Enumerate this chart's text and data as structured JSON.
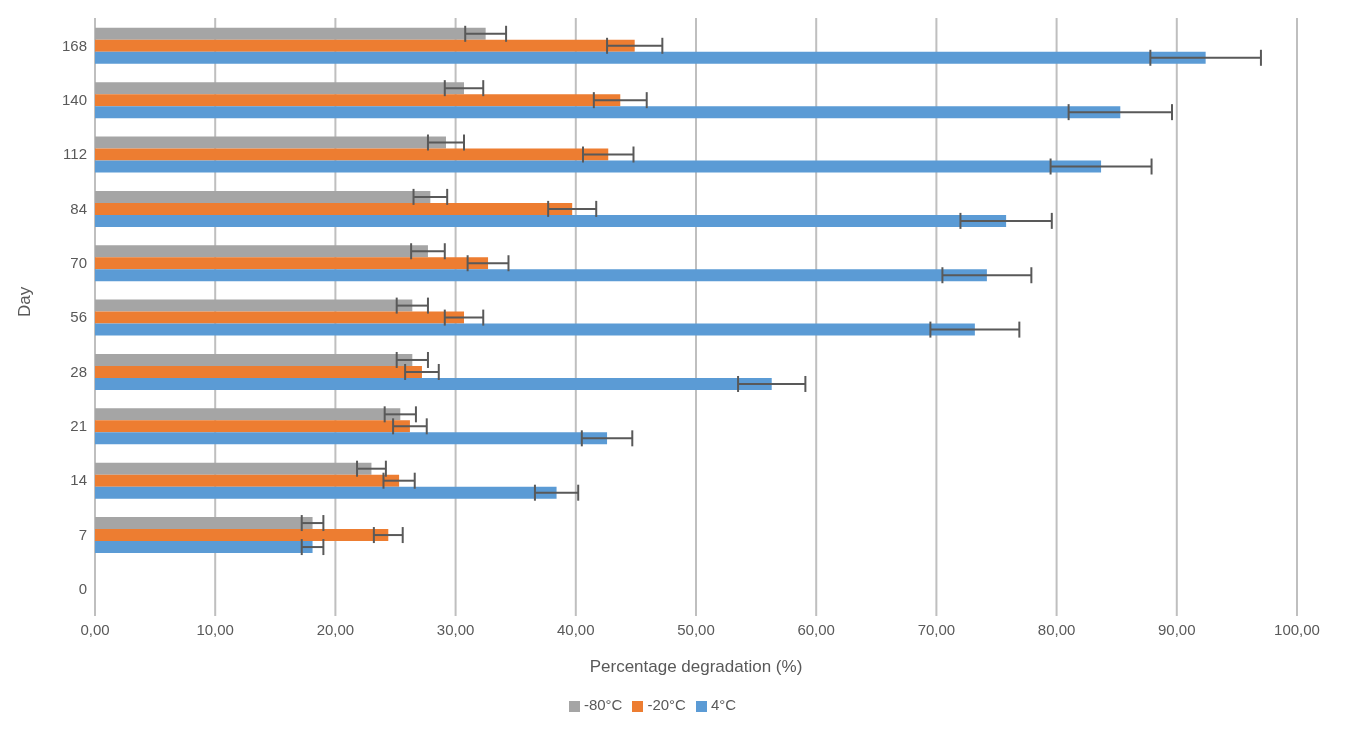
{
  "chart_data": {
    "type": "bar",
    "orientation": "horizontal",
    "xlabel": "Percentage degradation (%)",
    "ylabel": "Day",
    "categories": [
      "168",
      "140",
      "112",
      "84",
      "70",
      "56",
      "28",
      "21",
      "14",
      "7",
      "0"
    ],
    "series": [
      {
        "name": "-80°C",
        "color": "#a5a5a5",
        "values": [
          32.5,
          30.7,
          29.2,
          27.9,
          27.7,
          26.4,
          26.4,
          25.4,
          23.0,
          18.1,
          null
        ],
        "errors": [
          1.7,
          1.6,
          1.5,
          1.4,
          1.4,
          1.3,
          1.3,
          1.3,
          1.2,
          0.9,
          null
        ]
      },
      {
        "name": "-20°C",
        "color": "#ed7d31",
        "values": [
          44.9,
          43.7,
          42.7,
          39.7,
          32.7,
          30.7,
          27.2,
          26.2,
          25.3,
          24.4,
          null
        ],
        "errors": [
          2.3,
          2.2,
          2.1,
          2.0,
          1.7,
          1.6,
          1.4,
          1.4,
          1.3,
          1.2,
          null
        ]
      },
      {
        "name": "4°C",
        "color": "#5b9bd5",
        "values": [
          92.4,
          85.3,
          83.7,
          75.8,
          74.2,
          73.2,
          56.3,
          42.6,
          38.4,
          18.1,
          null
        ],
        "errors": [
          4.6,
          4.3,
          4.2,
          3.8,
          3.7,
          3.7,
          2.8,
          2.1,
          1.8,
          0.9,
          null
        ]
      }
    ],
    "xlim": [
      0,
      100
    ],
    "xticks": [
      {
        "value": 0,
        "label": "0,00"
      },
      {
        "value": 10,
        "label": "10,00"
      },
      {
        "value": 20,
        "label": "20,00"
      },
      {
        "value": 30,
        "label": "30,00"
      },
      {
        "value": 40,
        "label": "40,00"
      },
      {
        "value": 50,
        "label": "50,00"
      },
      {
        "value": 60,
        "label": "60,00"
      },
      {
        "value": 70,
        "label": "70,00"
      },
      {
        "value": 80,
        "label": "80,00"
      },
      {
        "value": 90,
        "label": "90,00"
      },
      {
        "value": 100,
        "label": "100,00"
      }
    ],
    "grid": "x",
    "legend": "bottom"
  }
}
